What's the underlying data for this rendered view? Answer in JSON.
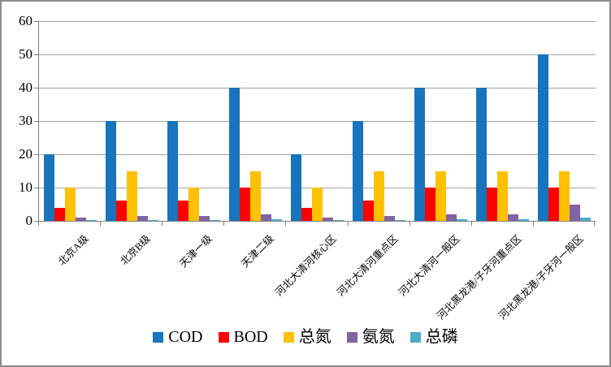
{
  "chart_data": {
    "type": "bar",
    "title": "",
    "xlabel": "",
    "ylabel": "",
    "ylim": [
      0,
      60
    ],
    "yticks": [
      0,
      10,
      20,
      30,
      40,
      50,
      60
    ],
    "grid": true,
    "legend_position": "bottom",
    "categories": [
      "北京A级",
      "北京B级",
      "天津一级",
      "天津二级",
      "河北大清河核心区",
      "河北大清河重点区",
      "河北大清河一般区",
      "河北黑龙港/子牙河重点区",
      "河北黑龙港/子牙河一般区"
    ],
    "series": [
      {
        "name": "COD",
        "color": "#1874BC",
        "values": [
          20,
          30,
          30,
          40,
          20,
          30,
          40,
          40,
          50
        ]
      },
      {
        "name": "BOD",
        "color": "#FE0000",
        "values": [
          4,
          6,
          6,
          10,
          4,
          6,
          10,
          10,
          10
        ]
      },
      {
        "name": "总氮",
        "color": "#FFC000",
        "values": [
          10,
          15,
          10,
          15,
          10,
          15,
          15,
          15,
          15
        ]
      },
      {
        "name": "氨氮",
        "color": "#8064A2",
        "values": [
          1,
          1.5,
          1.5,
          2,
          1,
          1.5,
          2,
          2,
          5
        ]
      },
      {
        "name": "总磷",
        "color": "#4BACC6",
        "values": [
          0.2,
          0.3,
          0.3,
          0.5,
          0.2,
          0.3,
          0.5,
          0.5,
          1.0
        ]
      }
    ]
  }
}
